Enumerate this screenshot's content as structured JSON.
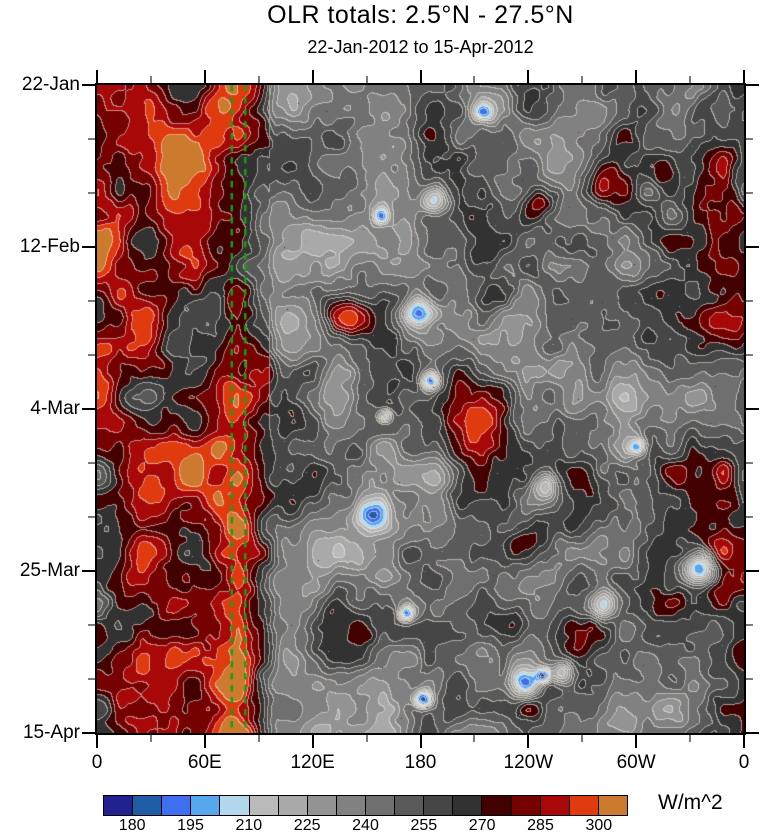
{
  "header": {
    "title": "OLR totals: 2.5°N - 27.5°N",
    "subtitle": "22-Jan-2012 to 15-Apr-2012"
  },
  "chart_data": {
    "type": "heatmap",
    "title": "OLR totals: 2.5°N - 27.5°N",
    "subtitle": "22-Jan-2012 to 15-Apr-2012",
    "x_axis": {
      "tick_labels": [
        "0",
        "60E",
        "120E",
        "180",
        "120W",
        "60W",
        "0"
      ],
      "major_interval_deg": 60,
      "minor_interval_deg": 30,
      "range_deg": [
        0,
        360
      ]
    },
    "y_axis": {
      "tick_labels": [
        "22-Jan",
        "12-Feb",
        "4-Mar",
        "25-Mar",
        "15-Apr"
      ],
      "major_interval_days": 21,
      "minor_interval_days": 7,
      "start": "22-Jan-2012",
      "end": "15-Apr-2012"
    },
    "colorbar": {
      "labels": [
        "180",
        "195",
        "210",
        "225",
        "240",
        "255",
        "270",
        "285",
        "300"
      ],
      "units": "W/m^2",
      "level_min": 180,
      "level_max": 300,
      "level_step": 7.5,
      "palette": [
        "#21218f",
        "#1e5ca6",
        "#3f6ff0",
        "#55a7ee",
        "#b3d8ee",
        "#bababa",
        "#a9a9a9",
        "#939393",
        "#818181",
        "#6f6f6f",
        "#5a5a5a",
        "#464646",
        "#323232",
        "#420000",
        "#760101",
        "#a80808",
        "#e03a0f",
        "#cc7a2e"
      ]
    },
    "contour_line_color": "#f2ece2",
    "reference_lines": {
      "style": "dashed",
      "color": "#15a015",
      "longitudes_deg": [
        75,
        82.5
      ]
    },
    "field_pattern": {
      "description": "Time-longitude (Hovmoller) plot of OLR. A persistent band of high OLR (dark red to orange, 270-310 W/m^2) covers roughly 0-95E for the whole 22-Jan to 15-Apr period, with orange cores above 300 W/m^2 near 20-50E in March. East of ~95E the field is mottled gray (215-270 W/m^2) with scattered dark-red patches (>270) and isolated low-OLR spots (<210) appearing as light-blue/blue cells. Two green dashed vertical reference lines near 75E-82.5E span the full time range.",
      "red_band_lon_deg": [
        0,
        95
      ],
      "red_band_mean_wm2": 281,
      "gray_zone_mean_wm2": 248,
      "noise_amplitude_wm2": 40,
      "blue_spot_count": 16,
      "seed": 20120415
    }
  }
}
